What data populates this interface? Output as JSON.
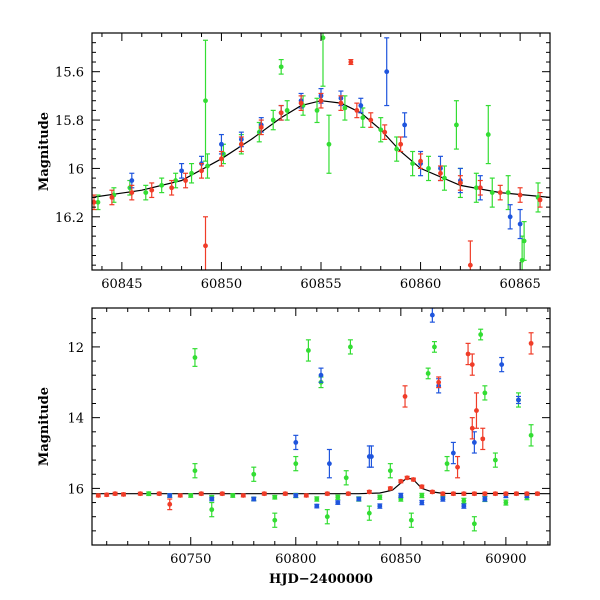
{
  "colors": {
    "green": "#33dd33",
    "blue": "#1f55dd",
    "red": "#f03c28",
    "model": "#000000"
  },
  "chart_data": [
    {
      "name": "zoom-panel",
      "type": "scatter",
      "title": "",
      "xlabel": "",
      "ylabel": "Magnitude",
      "xlim": [
        60843.5,
        60866.5
      ],
      "ylim": [
        16.42,
        15.44
      ],
      "y_inverted": true,
      "xticks": [
        60845,
        60850,
        60855,
        60860,
        60865
      ],
      "yticks": [
        15.6,
        15.8,
        16,
        16.2
      ],
      "ytick_labels": [
        "15.6",
        "15.8",
        "16",
        "16.2"
      ],
      "model_curve": {
        "x": [
          60843.5,
          60846,
          60848,
          60850,
          60851.5,
          60853,
          60854,
          60855,
          60856,
          60857,
          60858,
          60859,
          60860,
          60862,
          60864,
          60866.5
        ],
        "y": [
          16.12,
          16.09,
          16.05,
          15.96,
          15.88,
          15.79,
          15.74,
          15.72,
          15.73,
          15.77,
          15.84,
          15.93,
          16.0,
          16.07,
          16.1,
          16.12
        ]
      },
      "series": [
        {
          "name": "",
          "color": "green",
          "x": [
            60843.8,
            60844.6,
            60845.4,
            60846.2,
            60847.0,
            60847.7,
            60848.5,
            60849.3,
            60850.1,
            60851.0,
            60851.9,
            60852.6,
            60853.3,
            60854.1,
            60854.8,
            60855.4,
            60856.2,
            60857.1,
            60858.0,
            60858.8,
            60859.6,
            60860.4,
            60861.2,
            60862.0,
            60862.8,
            60863.6,
            60864.4,
            60865.2,
            60865.9,
            60849.2,
            60853.0,
            60855.1,
            60861.8,
            60863.4,
            60865.1
          ],
          "y": [
            16.14,
            16.11,
            16.08,
            16.1,
            16.07,
            16.05,
            16.02,
            15.99,
            15.94,
            15.9,
            15.85,
            15.8,
            15.76,
            15.74,
            15.76,
            15.9,
            15.75,
            15.79,
            15.84,
            15.92,
            15.98,
            16.0,
            16.04,
            16.06,
            16.08,
            16.1,
            16.1,
            16.3,
            16.12,
            15.72,
            15.58,
            15.46,
            15.82,
            15.86,
            16.38
          ],
          "yerr": [
            0.03,
            0.03,
            0.03,
            0.03,
            0.03,
            0.03,
            0.04,
            0.05,
            0.04,
            0.04,
            0.04,
            0.04,
            0.04,
            0.04,
            0.05,
            0.12,
            0.05,
            0.04,
            0.05,
            0.05,
            0.05,
            0.05,
            0.05,
            0.06,
            0.06,
            0.06,
            0.07,
            0.08,
            0.06,
            0.25,
            0.03,
            0.2,
            0.1,
            0.12,
            0.1
          ]
        },
        {
          "name": "",
          "color": "blue",
          "x": [
            60845.5,
            60848.0,
            60849.0,
            60850.0,
            60851.0,
            60852.0,
            60853.0,
            60854.0,
            60855.0,
            60856.0,
            60857.0,
            60858.3,
            60859.2,
            60860.0,
            60861.0,
            60862.0,
            60863.0,
            60864.5,
            60865.0
          ],
          "y": [
            16.05,
            16.01,
            15.98,
            15.9,
            15.88,
            15.82,
            15.77,
            15.72,
            15.7,
            15.71,
            15.74,
            15.6,
            15.82,
            15.98,
            16.0,
            16.05,
            16.08,
            16.2,
            16.23
          ],
          "yerr": [
            0.03,
            0.03,
            0.03,
            0.04,
            0.03,
            0.03,
            0.03,
            0.03,
            0.03,
            0.03,
            0.03,
            0.14,
            0.05,
            0.05,
            0.05,
            0.05,
            0.05,
            0.05,
            0.06
          ]
        },
        {
          "name": "",
          "color": "red",
          "x": [
            60843.6,
            60844.5,
            60845.5,
            60846.5,
            60847.5,
            60848.2,
            60849.0,
            60850.0,
            60851.0,
            60852.0,
            60853.0,
            60854.0,
            60855.0,
            60856.0,
            60856.8,
            60857.5,
            60858.2,
            60859.0,
            60860.0,
            60861.0,
            60862.0,
            60863.0,
            60864.0,
            60865.0,
            60866.0,
            60856.5,
            60862.5,
            60849.2
          ],
          "y": [
            16.14,
            16.12,
            16.1,
            16.09,
            16.08,
            16.05,
            16.01,
            15.96,
            15.9,
            15.83,
            15.77,
            15.73,
            15.72,
            15.73,
            15.76,
            15.8,
            15.85,
            15.9,
            15.97,
            16.02,
            16.06,
            16.08,
            16.1,
            16.11,
            16.13,
            15.56,
            16.4,
            16.32
          ],
          "yerr": [
            0.03,
            0.03,
            0.03,
            0.03,
            0.03,
            0.03,
            0.03,
            0.03,
            0.03,
            0.03,
            0.03,
            0.03,
            0.03,
            0.03,
            0.03,
            0.03,
            0.03,
            0.03,
            0.03,
            0.03,
            0.03,
            0.03,
            0.03,
            0.03,
            0.03,
            0.01,
            0.1,
            0.12
          ]
        }
      ]
    },
    {
      "name": "full-panel",
      "type": "scatter",
      "title": "",
      "xlabel": "HJD−2400000",
      "ylabel": "Magnitude",
      "xlim": [
        60703,
        60921
      ],
      "ylim": [
        17.6,
        10.9
      ],
      "y_inverted": true,
      "xticks": [
        60750,
        60800,
        60850,
        60900
      ],
      "yticks": [
        12,
        14,
        16
      ],
      "ytick_labels": [
        "12",
        "14",
        "16"
      ],
      "model_curve": {
        "x": [
          60703,
          60830,
          60840,
          60846,
          60850,
          60853,
          60856,
          60860,
          60865,
          60870,
          60921
        ],
        "y": [
          16.15,
          16.15,
          16.13,
          16.05,
          15.85,
          15.7,
          15.75,
          16.0,
          16.1,
          16.14,
          16.15
        ]
      },
      "series": [
        {
          "name": "",
          "color": "green",
          "x": [
            60730,
            60740,
            60750,
            60760,
            60770,
            60780,
            60790,
            60800,
            60810,
            60820,
            60830,
            60840,
            60850,
            60860,
            60870,
            60880,
            60890,
            60900,
            60910,
            60752,
            60806,
            60812,
            60826,
            60863,
            60866,
            60888,
            60890,
            60906,
            60912,
            60752,
            60780,
            60800,
            60824,
            60845,
            60872,
            60895,
            60760,
            60790,
            60815,
            60835,
            60855,
            60885
          ],
          "y": [
            16.15,
            16.2,
            16.2,
            16.25,
            16.2,
            16.3,
            16.25,
            16.2,
            16.3,
            16.25,
            16.3,
            16.25,
            16.3,
            16.2,
            16.25,
            16.35,
            16.3,
            16.4,
            16.25,
            12.3,
            12.1,
            13.0,
            12.0,
            12.75,
            12.0,
            11.65,
            13.3,
            13.5,
            14.5,
            15.5,
            15.6,
            15.3,
            15.7,
            15.5,
            15.3,
            15.2,
            16.6,
            16.9,
            16.8,
            16.7,
            16.9,
            17.0
          ],
          "yerr": [
            0.05,
            0.05,
            0.05,
            0.05,
            0.05,
            0.05,
            0.05,
            0.06,
            0.06,
            0.06,
            0.06,
            0.06,
            0.06,
            0.06,
            0.06,
            0.07,
            0.07,
            0.07,
            0.07,
            0.25,
            0.3,
            0.15,
            0.2,
            0.15,
            0.15,
            0.15,
            0.2,
            0.2,
            0.3,
            0.2,
            0.2,
            0.2,
            0.2,
            0.2,
            0.2,
            0.2,
            0.2,
            0.2,
            0.2,
            0.2,
            0.2,
            0.2
          ]
        },
        {
          "name": "",
          "color": "blue",
          "x": [
            60740,
            60760,
            60780,
            60800,
            60810,
            60820,
            60830,
            60840,
            60850,
            60860,
            60870,
            60880,
            60890,
            60900,
            60910,
            60865,
            60868,
            60812,
            60836,
            60875,
            60898,
            60906,
            60800,
            60816,
            60835,
            60885
          ],
          "y": [
            16.2,
            16.3,
            16.3,
            16.2,
            16.5,
            16.4,
            16.3,
            16.5,
            16.2,
            16.4,
            16.3,
            16.5,
            16.3,
            16.2,
            16.2,
            11.1,
            13.1,
            12.8,
            15.1,
            15.0,
            12.5,
            13.5,
            14.7,
            15.3,
            15.1,
            14.7
          ],
          "yerr": [
            0.05,
            0.05,
            0.05,
            0.05,
            0.05,
            0.05,
            0.05,
            0.06,
            0.06,
            0.06,
            0.06,
            0.06,
            0.06,
            0.06,
            0.06,
            0.2,
            0.2,
            0.2,
            0.3,
            0.3,
            0.2,
            0.1,
            0.2,
            0.4,
            0.3,
            0.3
          ]
        },
        {
          "name": "",
          "color": "red",
          "x": [
            60706,
            60710,
            60714,
            60718,
            60726,
            60735,
            60745,
            60755,
            60765,
            60775,
            60785,
            60795,
            60805,
            60815,
            60825,
            60835,
            60845,
            60850,
            60853,
            60856,
            60860,
            60865,
            60870,
            60875,
            60880,
            60885,
            60890,
            60895,
            60900,
            60905,
            60910,
            60915,
            60852,
            60868,
            60882,
            60884,
            60886,
            60912,
            60884,
            60877,
            60889,
            60740
          ],
          "y": [
            16.2,
            16.18,
            16.15,
            16.17,
            16.15,
            16.15,
            16.2,
            16.15,
            16.15,
            16.2,
            16.15,
            16.15,
            16.2,
            16.15,
            16.15,
            16.1,
            16.0,
            15.8,
            15.7,
            15.75,
            15.95,
            16.1,
            16.15,
            16.15,
            16.15,
            16.15,
            16.15,
            16.15,
            16.15,
            16.15,
            16.15,
            16.15,
            13.4,
            13.0,
            12.2,
            12.5,
            13.8,
            11.9,
            14.3,
            15.4,
            14.6,
            16.45
          ],
          "yerr": [
            0.04,
            0.04,
            0.04,
            0.04,
            0.04,
            0.04,
            0.04,
            0.04,
            0.04,
            0.04,
            0.04,
            0.04,
            0.04,
            0.04,
            0.04,
            0.04,
            0.04,
            0.04,
            0.04,
            0.04,
            0.04,
            0.04,
            0.04,
            0.04,
            0.04,
            0.04,
            0.04,
            0.04,
            0.04,
            0.04,
            0.04,
            0.04,
            0.3,
            0.15,
            0.3,
            0.3,
            0.5,
            0.3,
            0.3,
            0.3,
            0.3,
            0.15
          ]
        }
      ]
    }
  ]
}
